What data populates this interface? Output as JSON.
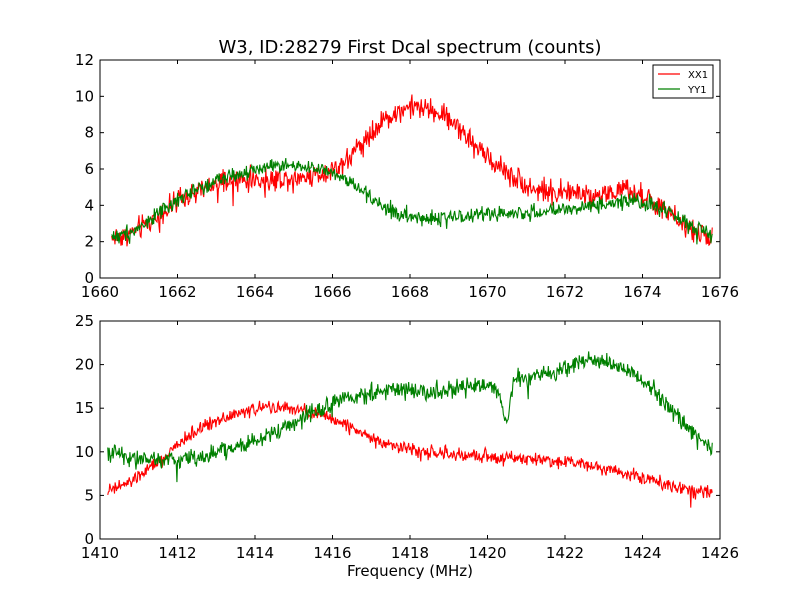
{
  "title": "W3, ID:28279 First Dcal spectrum (counts)",
  "colors": {
    "XX1": "#ff0000",
    "YY1": "#008000"
  },
  "chart_data": [
    {
      "type": "line",
      "title": "W3, ID:28279 First Dcal spectrum (counts)",
      "xlabel": "",
      "ylabel": "",
      "xlim": [
        1660,
        1676
      ],
      "ylim": [
        0,
        12
      ],
      "xticks": [
        1660,
        1662,
        1664,
        1666,
        1668,
        1670,
        1672,
        1674,
        1676
      ],
      "yticks": [
        0,
        2,
        4,
        6,
        8,
        10,
        12
      ],
      "legend": {
        "position": "top-right",
        "entries": [
          "XX1",
          "YY1"
        ]
      },
      "grid": false,
      "series": [
        {
          "name": "XX1",
          "color": "#ff0000",
          "noise": 0.45,
          "x": [
            1660.3,
            1660.8,
            1661.3,
            1661.8,
            1662.3,
            1662.8,
            1663.3,
            1663.8,
            1664.3,
            1664.8,
            1665.3,
            1665.8,
            1666.2,
            1666.6,
            1667.0,
            1667.4,
            1667.8,
            1668.2,
            1668.6,
            1669.0,
            1669.4,
            1669.8,
            1670.2,
            1670.6,
            1671.0,
            1671.4,
            1671.8,
            1672.2,
            1672.6,
            1673.0,
            1673.4,
            1673.8,
            1674.2,
            1674.6,
            1675.0,
            1675.4,
            1675.8
          ],
          "y": [
            2.2,
            2.5,
            3.1,
            3.9,
            4.5,
            5.0,
            5.3,
            5.4,
            5.4,
            5.5,
            5.6,
            5.8,
            6.2,
            7.0,
            8.0,
            8.8,
            9.3,
            9.4,
            9.2,
            8.8,
            8.0,
            7.0,
            6.3,
            5.7,
            5.1,
            4.8,
            4.7,
            4.7,
            4.6,
            4.6,
            4.8,
            4.7,
            4.3,
            3.6,
            3.0,
            2.5,
            2.2
          ]
        },
        {
          "name": "YY1",
          "color": "#008000",
          "noise": 0.3,
          "x": [
            1660.3,
            1660.8,
            1661.3,
            1661.8,
            1662.3,
            1662.8,
            1663.3,
            1663.8,
            1664.3,
            1664.8,
            1665.3,
            1665.8,
            1666.2,
            1666.6,
            1667.0,
            1667.4,
            1667.8,
            1668.2,
            1668.6,
            1669.0,
            1669.4,
            1669.8,
            1670.2,
            1670.6,
            1671.0,
            1671.4,
            1671.8,
            1672.2,
            1672.6,
            1673.0,
            1673.4,
            1673.8,
            1674.2,
            1674.6,
            1675.0,
            1675.4,
            1675.8
          ],
          "y": [
            2.3,
            2.5,
            3.2,
            4.0,
            4.7,
            5.2,
            5.6,
            5.9,
            6.1,
            6.2,
            6.1,
            5.9,
            5.6,
            5.0,
            4.4,
            3.8,
            3.5,
            3.3,
            3.3,
            3.3,
            3.4,
            3.5,
            3.5,
            3.6,
            3.6,
            3.6,
            3.7,
            3.8,
            3.9,
            4.1,
            4.2,
            4.3,
            4.1,
            3.7,
            3.2,
            2.7,
            2.4
          ]
        }
      ]
    },
    {
      "type": "line",
      "title": "",
      "xlabel": "Frequency (MHz)",
      "ylabel": "",
      "xlim": [
        1410,
        1426
      ],
      "ylim": [
        0,
        25
      ],
      "xticks": [
        1410,
        1412,
        1414,
        1416,
        1418,
        1420,
        1422,
        1424,
        1426
      ],
      "yticks": [
        0,
        5,
        10,
        15,
        20,
        25
      ],
      "grid": false,
      "series": [
        {
          "name": "XX1",
          "color": "#ff0000",
          "noise": 0.55,
          "x": [
            1410.2,
            1410.7,
            1411.2,
            1411.7,
            1412.2,
            1412.7,
            1413.2,
            1413.7,
            1414.2,
            1414.7,
            1415.2,
            1415.7,
            1416.2,
            1416.7,
            1417.2,
            1417.7,
            1418.2,
            1418.7,
            1419.2,
            1419.7,
            1420.2,
            1420.7,
            1421.2,
            1421.7,
            1422.2,
            1422.7,
            1423.2,
            1423.7,
            1424.2,
            1424.7,
            1425.2,
            1425.8
          ],
          "y": [
            5.5,
            6.3,
            7.8,
            9.5,
            11.5,
            13.0,
            14.0,
            14.6,
            15.0,
            15.1,
            14.7,
            14.2,
            13.4,
            12.3,
            11.3,
            10.6,
            10.1,
            9.8,
            9.6,
            9.5,
            9.4,
            9.3,
            9.2,
            9.0,
            8.8,
            8.5,
            8.0,
            7.4,
            6.8,
            6.2,
            5.7,
            5.4
          ]
        },
        {
          "name": "YY1",
          "color": "#008000",
          "noise": 0.75,
          "x": [
            1410.2,
            1410.7,
            1411.2,
            1411.7,
            1412.2,
            1412.7,
            1413.2,
            1413.7,
            1414.2,
            1414.7,
            1415.2,
            1415.7,
            1416.2,
            1416.7,
            1417.2,
            1417.7,
            1418.2,
            1418.7,
            1419.2,
            1419.7,
            1420.2,
            1420.5,
            1420.7,
            1421.2,
            1421.7,
            1422.2,
            1422.7,
            1423.2,
            1423.7,
            1424.2,
            1424.7,
            1425.2,
            1425.8
          ],
          "y": [
            10.0,
            9.5,
            9.2,
            9.0,
            9.2,
            9.6,
            10.1,
            10.8,
            11.6,
            12.6,
            13.8,
            15.0,
            16.0,
            16.6,
            16.9,
            17.0,
            17.0,
            17.0,
            17.1,
            17.4,
            17.6,
            13.5,
            18.5,
            18.6,
            19.0,
            20.2,
            20.5,
            20.2,
            19.3,
            17.5,
            15.0,
            12.5,
            10.5
          ]
        }
      ]
    }
  ]
}
